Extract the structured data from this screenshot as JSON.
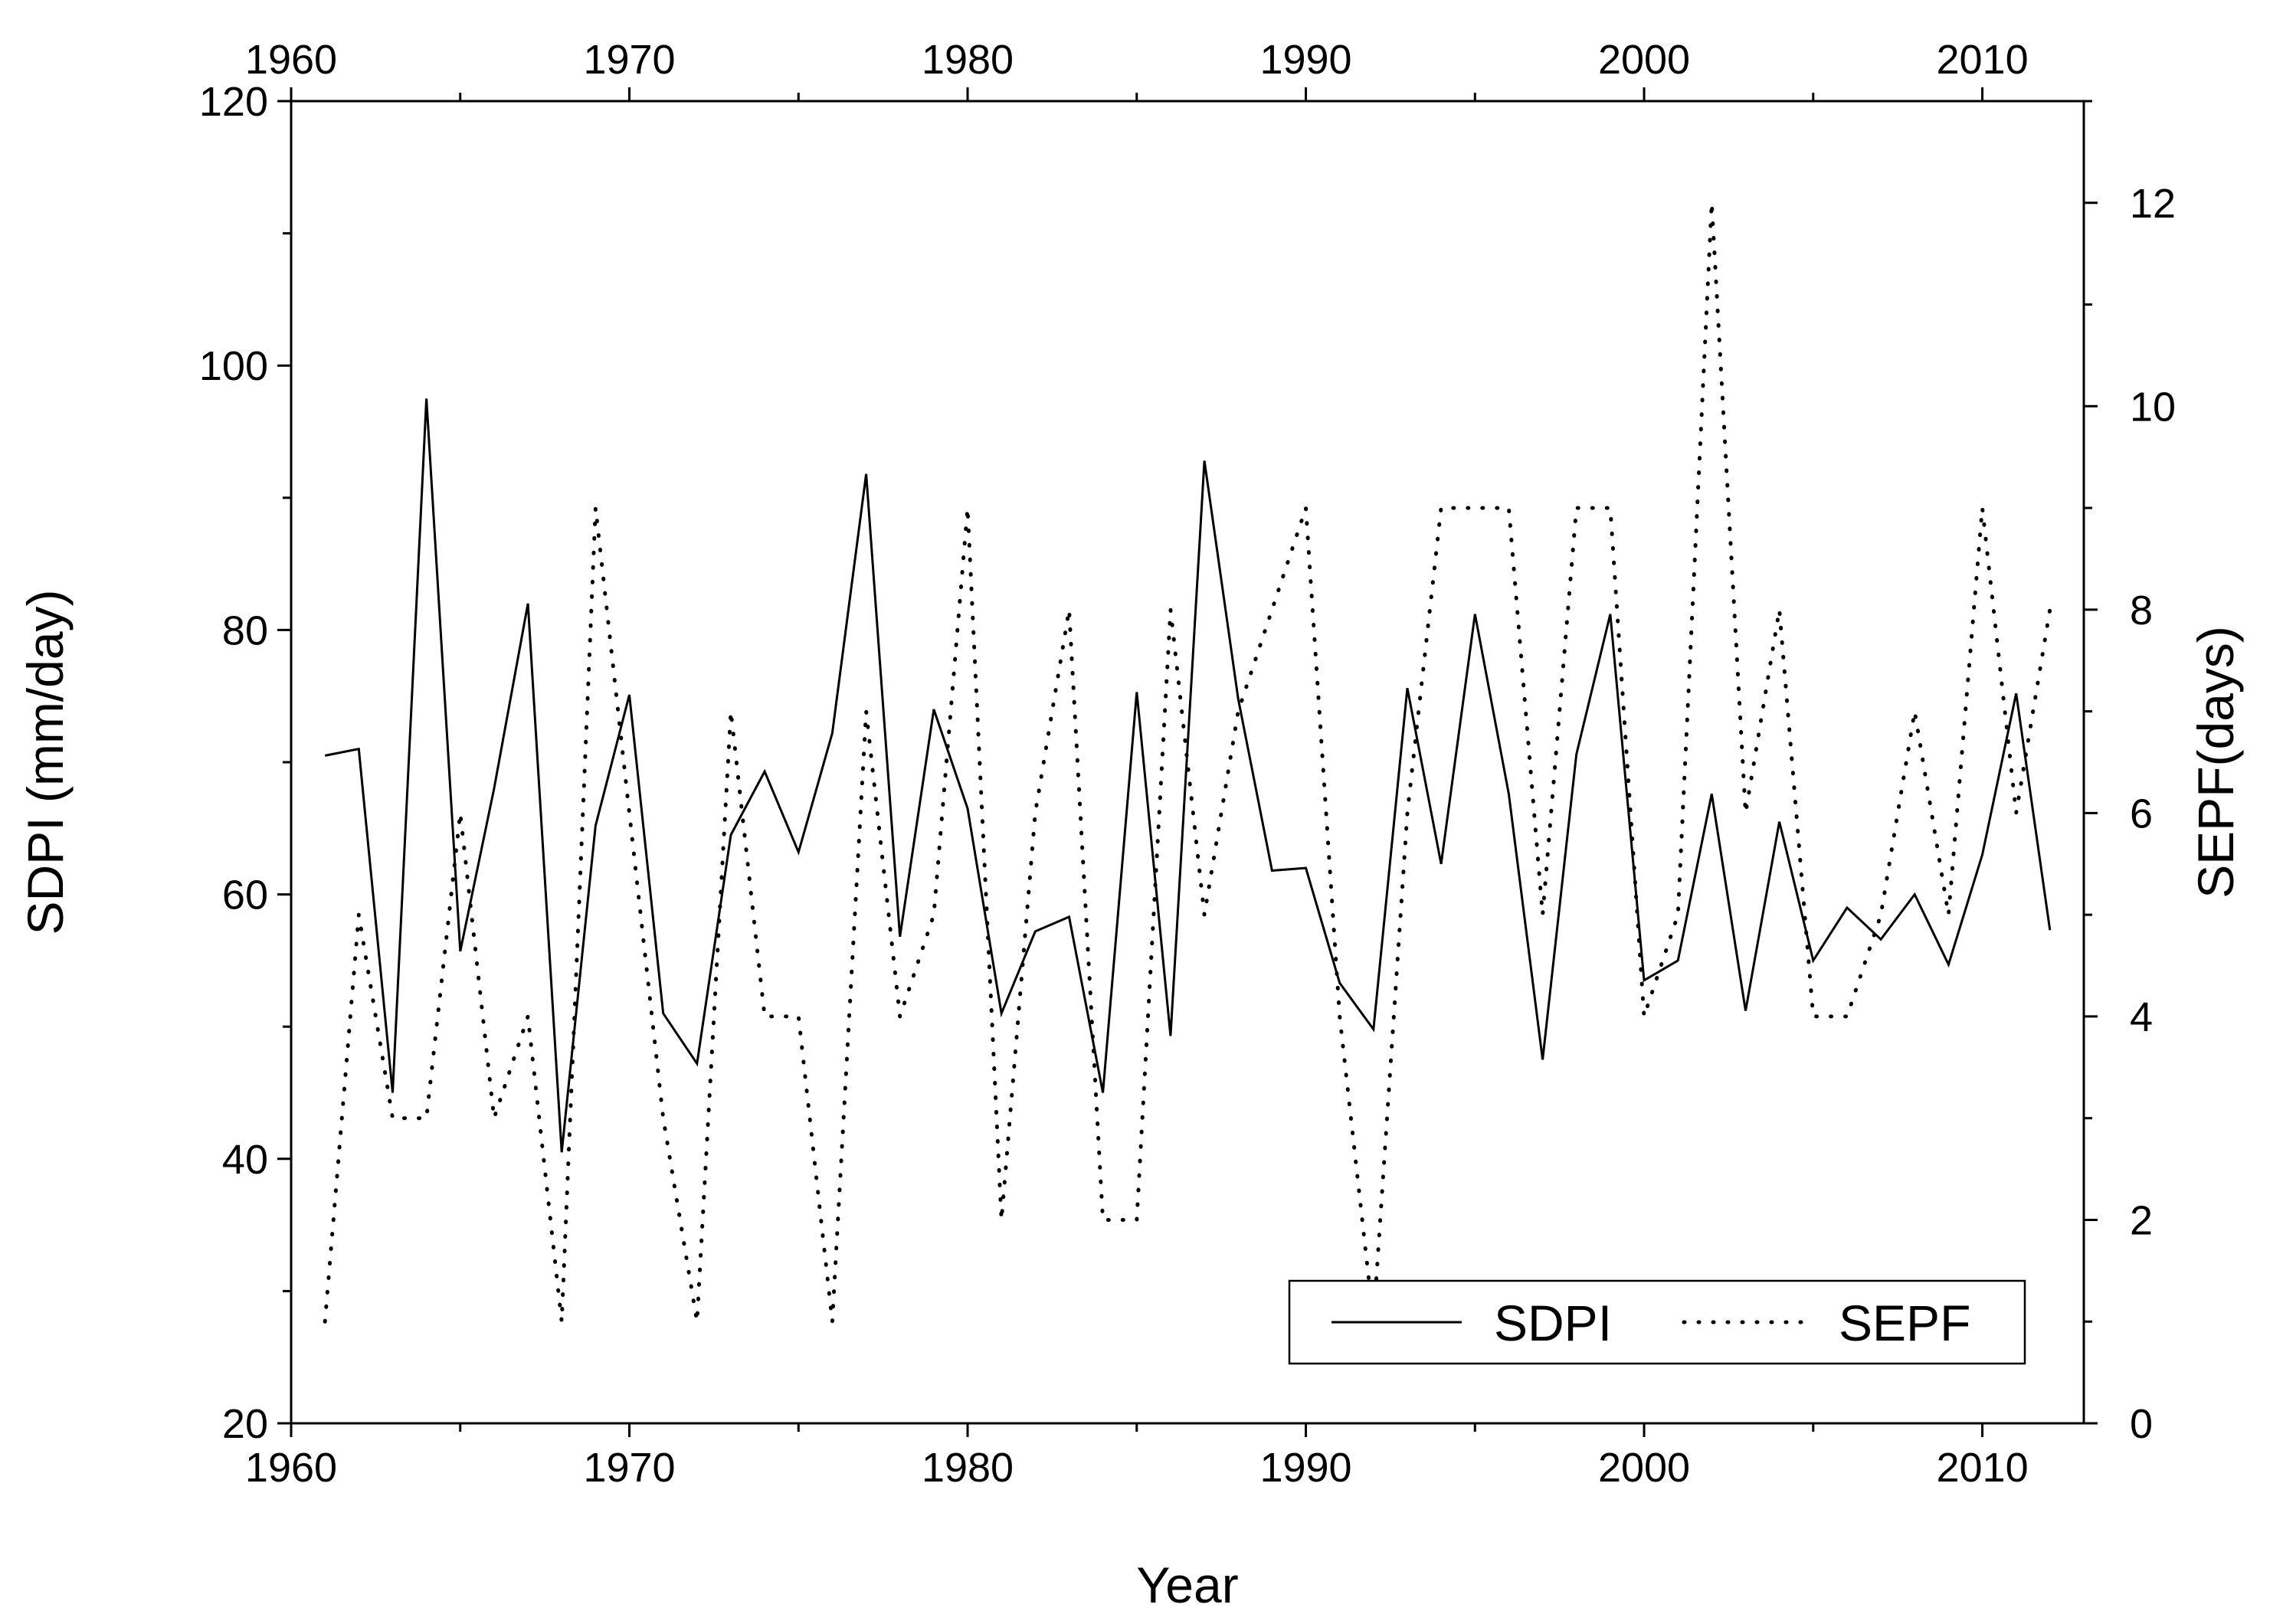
{
  "chart_data": {
    "type": "line",
    "title": "",
    "xlabel": "Year",
    "ylabel_left": "SDPI (mm/day)",
    "ylabel_right": "SEPF(days)",
    "xlim": [
      1960,
      2013
    ],
    "ylim_left": [
      20,
      120
    ],
    "ylim_right": [
      0,
      13
    ],
    "x_ticks": [
      1960,
      1970,
      1980,
      1990,
      2000,
      2010
    ],
    "y_left_ticks": [
      20,
      40,
      60,
      80,
      100,
      120
    ],
    "y_right_ticks": [
      0,
      2,
      4,
      6,
      8,
      10,
      12
    ],
    "grid": false,
    "legend_position": "bottom-right",
    "x": [
      1961,
      1962,
      1963,
      1964,
      1965,
      1966,
      1967,
      1968,
      1969,
      1970,
      1971,
      1972,
      1973,
      1974,
      1975,
      1976,
      1977,
      1978,
      1979,
      1980,
      1981,
      1982,
      1983,
      1984,
      1985,
      1986,
      1987,
      1988,
      1989,
      1990,
      1991,
      1992,
      1993,
      1994,
      1995,
      1996,
      1997,
      1998,
      1999,
      2000,
      2001,
      2002,
      2003,
      2004,
      2005,
      2006,
      2007,
      2008,
      2009,
      2010,
      2011,
      2012
    ],
    "series": [
      {
        "name": "SDPI",
        "axis": "left",
        "line_style": "solid",
        "values": [
          70.5,
          71,
          45,
          97.5,
          55.7,
          68,
          82,
          40.5,
          65.2,
          75.1,
          51,
          47.2,
          64.5,
          69.3,
          63.2,
          72.2,
          91.8,
          56.8,
          74,
          66.5,
          51,
          57.2,
          58.3,
          45,
          75.3,
          49.3,
          92.8,
          74.8,
          61.8,
          62,
          53.3,
          49.8,
          75.6,
          62.3,
          81.2,
          67.6,
          47.5,
          70.6,
          81.2,
          53.5,
          55,
          67.6,
          51.2,
          65.5,
          55,
          59,
          56.6,
          60,
          54.7,
          63,
          75.2,
          57.3
        ]
      },
      {
        "name": "SEPF",
        "axis": "right",
        "line_style": "dotted",
        "values": [
          1,
          5,
          3,
          3,
          6,
          3,
          4,
          1,
          9,
          6,
          3,
          1,
          7,
          4,
          4,
          1,
          7,
          4,
          5,
          9,
          2,
          6,
          8,
          2,
          2,
          8,
          5,
          7,
          8,
          9,
          4,
          1,
          6,
          9,
          9,
          9,
          5,
          9,
          9,
          4,
          5,
          12,
          6,
          8,
          4,
          4,
          5,
          7,
          5,
          9,
          6,
          8
        ]
      }
    ]
  }
}
